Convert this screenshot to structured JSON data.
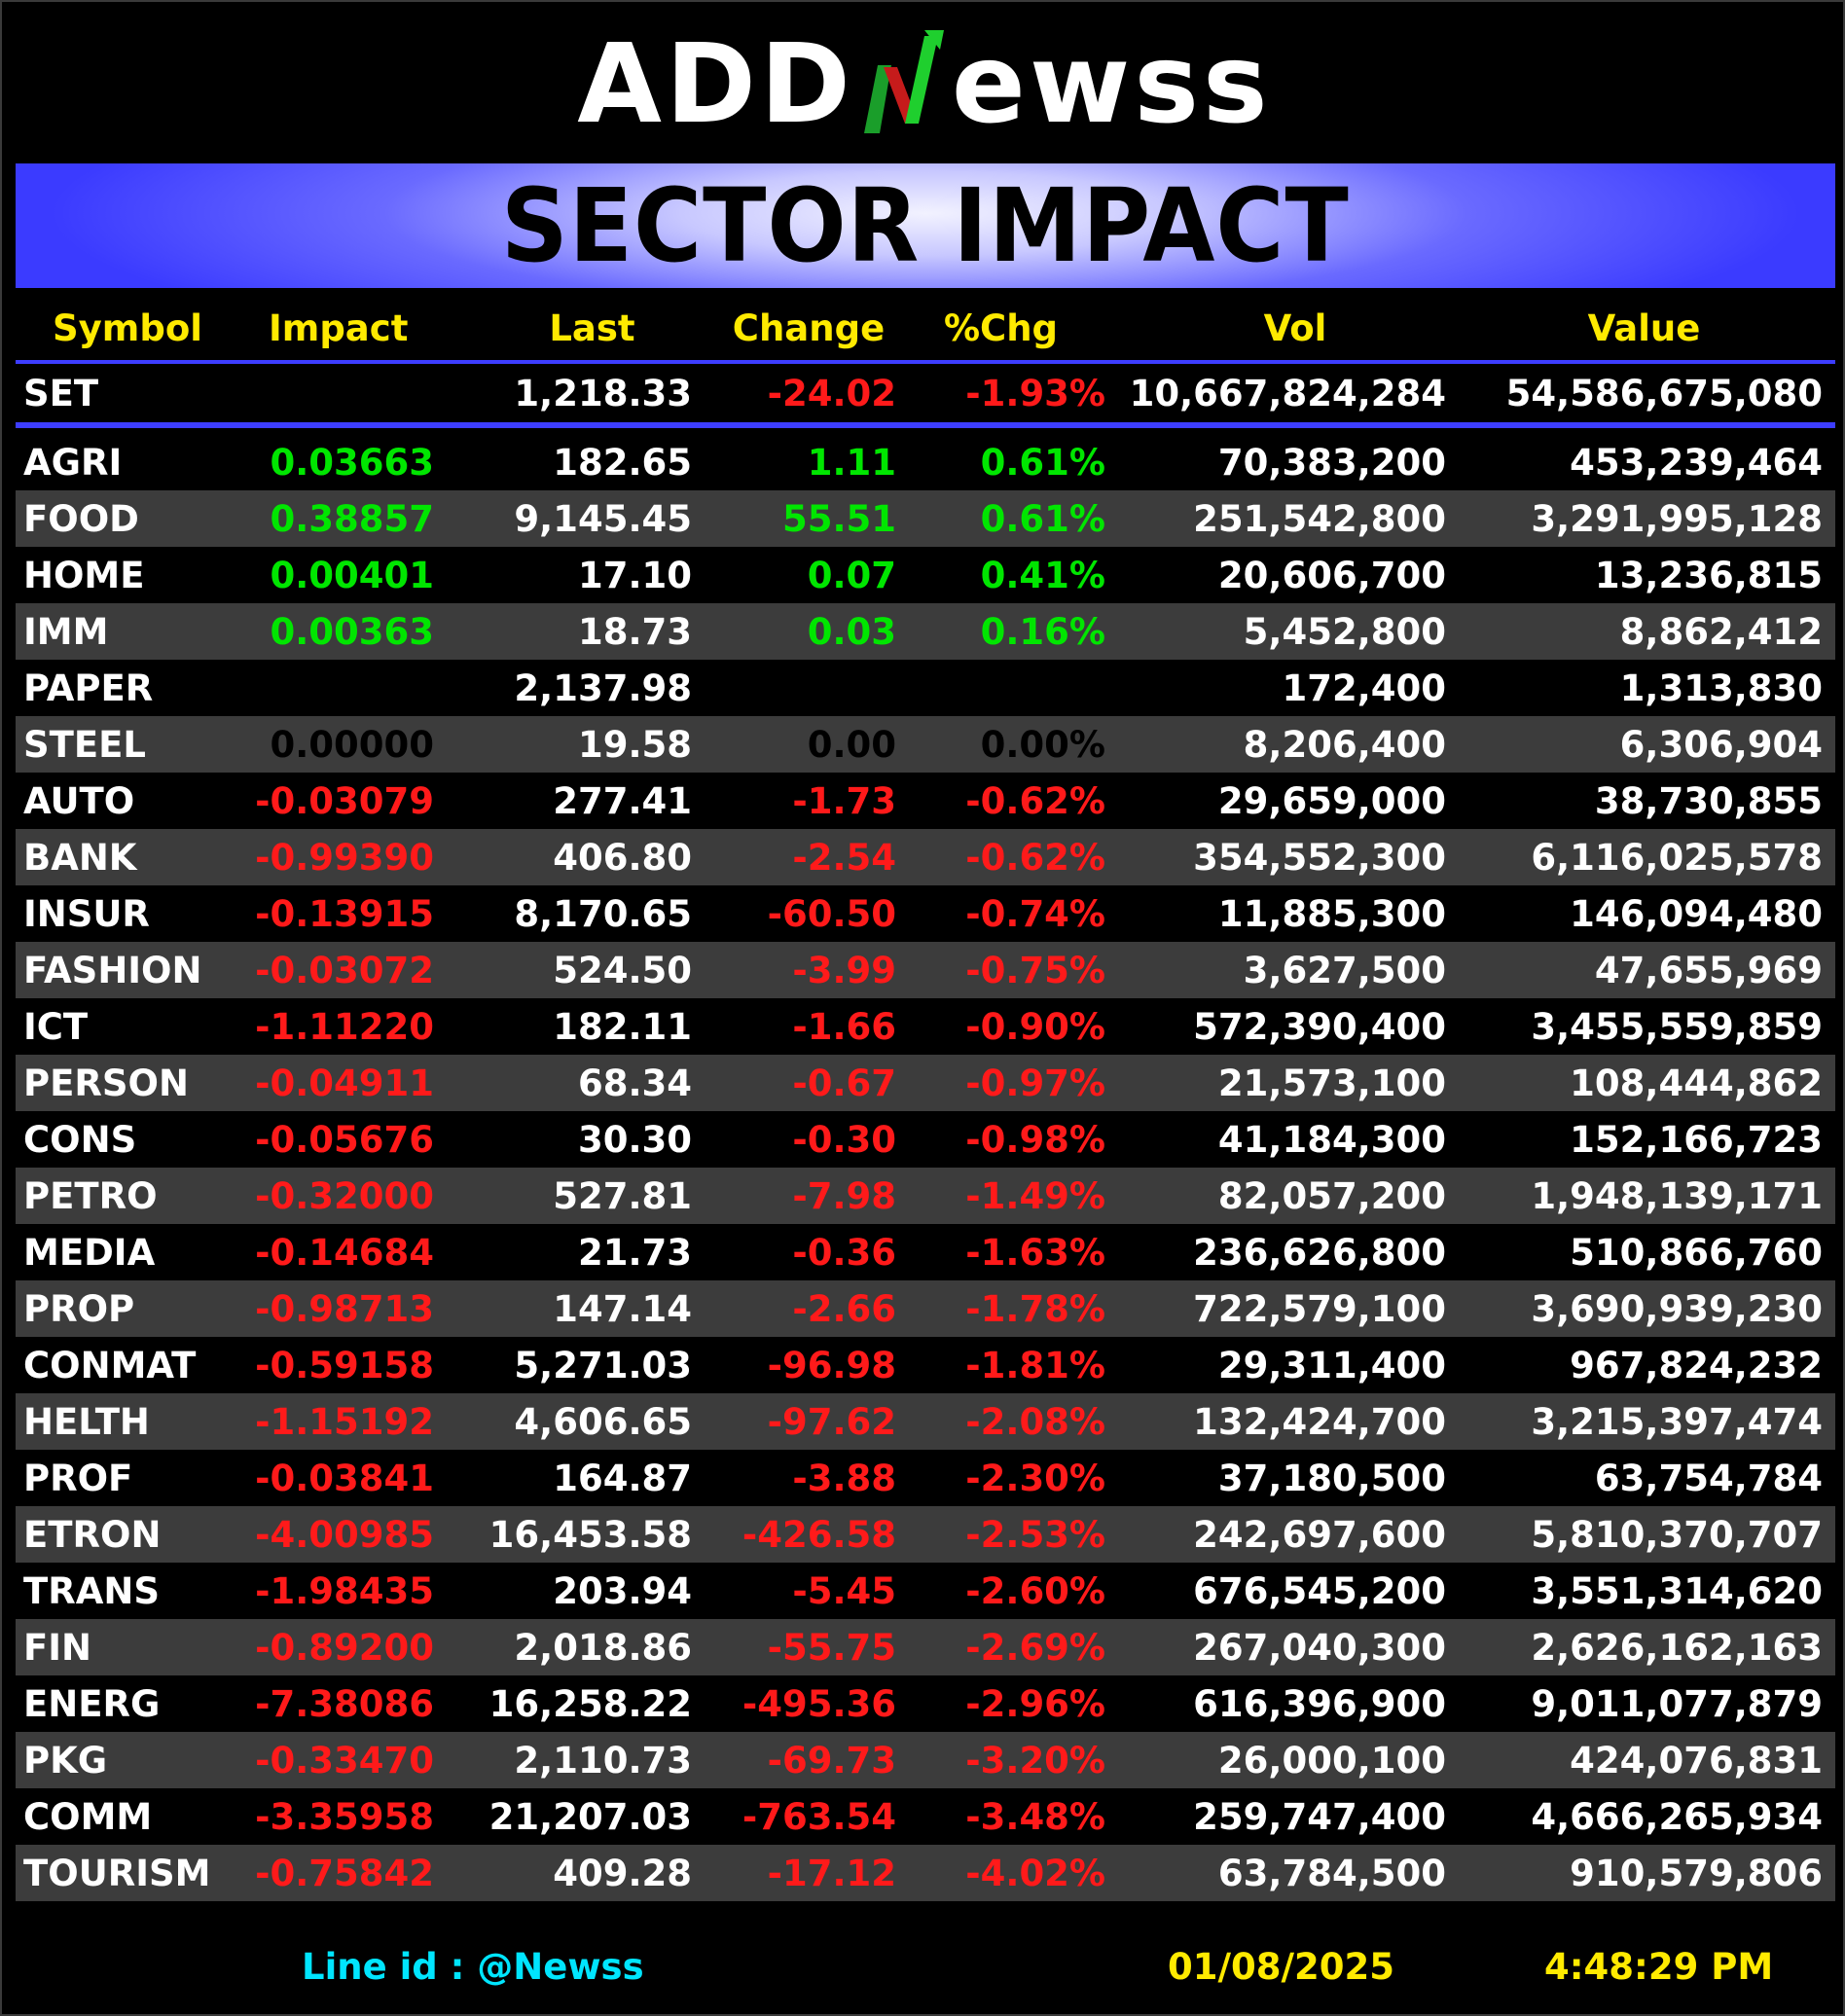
{
  "logo": {
    "left": "ADD",
    "right": "ewss",
    "icon": "stock-arrow-n-icon"
  },
  "title": "SECTOR IMPACT",
  "colors": {
    "banner": "#3b3bff",
    "header": "#ffea00",
    "positive": "#00e600",
    "negative": "#ff1a1a",
    "footer_id": "#00e5ff"
  },
  "columns": [
    "Symbol",
    "Impact",
    "Last",
    "Change",
    "%Chg",
    "Vol",
    "Value"
  ],
  "set": {
    "symbol": "SET",
    "impact": "",
    "last": "1,218.33",
    "change": "-24.02",
    "pct": "-1.93%",
    "vol": "10,667,824,284",
    "value": "54,586,675,080"
  },
  "rows": [
    {
      "symbol": "AGRI",
      "impact": "0.03663",
      "last": "182.65",
      "change": "1.11",
      "pct": "0.61%",
      "vol": "70,383,200",
      "value": "453,239,464",
      "dir": "pos"
    },
    {
      "symbol": "FOOD",
      "impact": "0.38857",
      "last": "9,145.45",
      "change": "55.51",
      "pct": "0.61%",
      "vol": "251,542,800",
      "value": "3,291,995,128",
      "dir": "pos"
    },
    {
      "symbol": "HOME",
      "impact": "0.00401",
      "last": "17.10",
      "change": "0.07",
      "pct": "0.41%",
      "vol": "20,606,700",
      "value": "13,236,815",
      "dir": "pos"
    },
    {
      "symbol": "IMM",
      "impact": "0.00363",
      "last": "18.73",
      "change": "0.03",
      "pct": "0.16%",
      "vol": "5,452,800",
      "value": "8,862,412",
      "dir": "pos"
    },
    {
      "symbol": "PAPER",
      "impact": "",
      "last": "2,137.98",
      "change": "",
      "pct": "",
      "vol": "172,400",
      "value": "1,313,830",
      "dir": "none"
    },
    {
      "symbol": "STEEL",
      "impact": "0.00000",
      "last": "19.58",
      "change": "0.00",
      "pct": "0.00%",
      "vol": "8,206,400",
      "value": "6,306,904",
      "dir": "zero"
    },
    {
      "symbol": "AUTO",
      "impact": "-0.03079",
      "last": "277.41",
      "change": "-1.73",
      "pct": "-0.62%",
      "vol": "29,659,000",
      "value": "38,730,855",
      "dir": "neg"
    },
    {
      "symbol": "BANK",
      "impact": "-0.99390",
      "last": "406.80",
      "change": "-2.54",
      "pct": "-0.62%",
      "vol": "354,552,300",
      "value": "6,116,025,578",
      "dir": "neg"
    },
    {
      "symbol": "INSUR",
      "impact": "-0.13915",
      "last": "8,170.65",
      "change": "-60.50",
      "pct": "-0.74%",
      "vol": "11,885,300",
      "value": "146,094,480",
      "dir": "neg"
    },
    {
      "symbol": "FASHION",
      "impact": "-0.03072",
      "last": "524.50",
      "change": "-3.99",
      "pct": "-0.75%",
      "vol": "3,627,500",
      "value": "47,655,969",
      "dir": "neg"
    },
    {
      "symbol": "ICT",
      "impact": "-1.11220",
      "last": "182.11",
      "change": "-1.66",
      "pct": "-0.90%",
      "vol": "572,390,400",
      "value": "3,455,559,859",
      "dir": "neg"
    },
    {
      "symbol": "PERSON",
      "impact": "-0.04911",
      "last": "68.34",
      "change": "-0.67",
      "pct": "-0.97%",
      "vol": "21,573,100",
      "value": "108,444,862",
      "dir": "neg"
    },
    {
      "symbol": "CONS",
      "impact": "-0.05676",
      "last": "30.30",
      "change": "-0.30",
      "pct": "-0.98%",
      "vol": "41,184,300",
      "value": "152,166,723",
      "dir": "neg"
    },
    {
      "symbol": "PETRO",
      "impact": "-0.32000",
      "last": "527.81",
      "change": "-7.98",
      "pct": "-1.49%",
      "vol": "82,057,200",
      "value": "1,948,139,171",
      "dir": "neg"
    },
    {
      "symbol": "MEDIA",
      "impact": "-0.14684",
      "last": "21.73",
      "change": "-0.36",
      "pct": "-1.63%",
      "vol": "236,626,800",
      "value": "510,866,760",
      "dir": "neg"
    },
    {
      "symbol": "PROP",
      "impact": "-0.98713",
      "last": "147.14",
      "change": "-2.66",
      "pct": "-1.78%",
      "vol": "722,579,100",
      "value": "3,690,939,230",
      "dir": "neg"
    },
    {
      "symbol": "CONMAT",
      "impact": "-0.59158",
      "last": "5,271.03",
      "change": "-96.98",
      "pct": "-1.81%",
      "vol": "29,311,400",
      "value": "967,824,232",
      "dir": "neg"
    },
    {
      "symbol": "HELTH",
      "impact": "-1.15192",
      "last": "4,606.65",
      "change": "-97.62",
      "pct": "-2.08%",
      "vol": "132,424,700",
      "value": "3,215,397,474",
      "dir": "neg"
    },
    {
      "symbol": "PROF",
      "impact": "-0.03841",
      "last": "164.87",
      "change": "-3.88",
      "pct": "-2.30%",
      "vol": "37,180,500",
      "value": "63,754,784",
      "dir": "neg"
    },
    {
      "symbol": "ETRON",
      "impact": "-4.00985",
      "last": "16,453.58",
      "change": "-426.58",
      "pct": "-2.53%",
      "vol": "242,697,600",
      "value": "5,810,370,707",
      "dir": "neg"
    },
    {
      "symbol": "TRANS",
      "impact": "-1.98435",
      "last": "203.94",
      "change": "-5.45",
      "pct": "-2.60%",
      "vol": "676,545,200",
      "value": "3,551,314,620",
      "dir": "neg"
    },
    {
      "symbol": "FIN",
      "impact": "-0.89200",
      "last": "2,018.86",
      "change": "-55.75",
      "pct": "-2.69%",
      "vol": "267,040,300",
      "value": "2,626,162,163",
      "dir": "neg"
    },
    {
      "symbol": "ENERG",
      "impact": "-7.38086",
      "last": "16,258.22",
      "change": "-495.36",
      "pct": "-2.96%",
      "vol": "616,396,900",
      "value": "9,011,077,879",
      "dir": "neg"
    },
    {
      "symbol": "PKG",
      "impact": "-0.33470",
      "last": "2,110.73",
      "change": "-69.73",
      "pct": "-3.20%",
      "vol": "26,000,100",
      "value": "424,076,831",
      "dir": "neg"
    },
    {
      "symbol": "COMM",
      "impact": "-3.35958",
      "last": "21,207.03",
      "change": "-763.54",
      "pct": "-3.48%",
      "vol": "259,747,400",
      "value": "4,666,265,934",
      "dir": "neg"
    },
    {
      "symbol": "TOURISM",
      "impact": "-0.75842",
      "last": "409.28",
      "change": "-17.12",
      "pct": "-4.02%",
      "vol": "63,784,500",
      "value": "910,579,806",
      "dir": "neg"
    }
  ],
  "footer": {
    "line_id": "Line id  : @Newss",
    "date": "01/08/2025",
    "time": "4:48:29 PM"
  }
}
